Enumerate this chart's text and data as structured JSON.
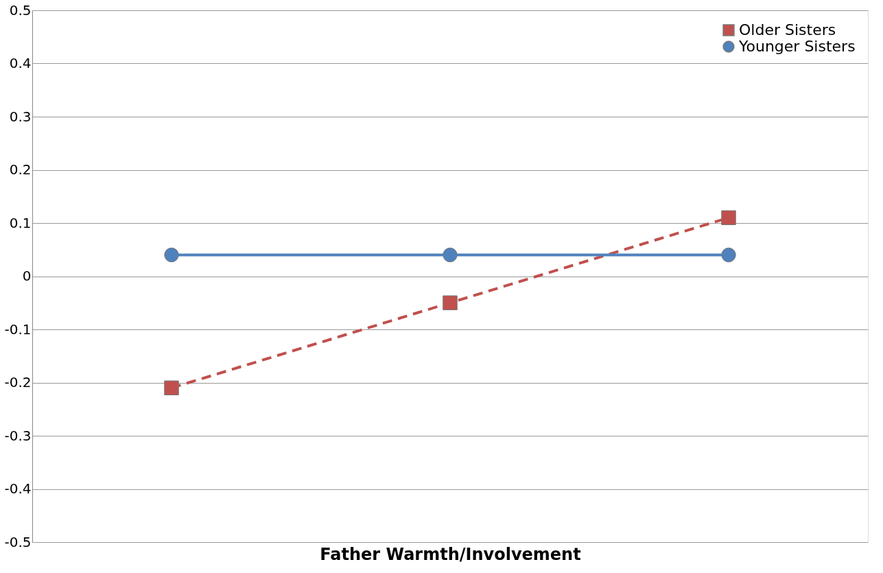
{
  "chart_data": {
    "type": "line",
    "xlabel": "Father Warmth/Involvement",
    "categories": [
      null,
      null,
      null
    ],
    "series": [
      {
        "name": "Older Sisters",
        "color": "#c0504d",
        "values": [
          -0.21,
          -0.05,
          0.11
        ],
        "marker": "square",
        "line_style": "dashed"
      },
      {
        "name": "Younger Sisters",
        "color": "#4f81bd",
        "values": [
          0.04,
          0.04,
          0.04
        ],
        "marker": "circle",
        "line_style": "solid"
      }
    ],
    "ylim": [
      -0.5,
      0.5
    ],
    "yticks": [
      -0.5,
      -0.4,
      -0.3,
      -0.2,
      -0.1,
      0,
      0.1,
      0.2,
      0.3,
      0.4,
      0.5
    ],
    "grid": "y",
    "legend": "top right"
  }
}
